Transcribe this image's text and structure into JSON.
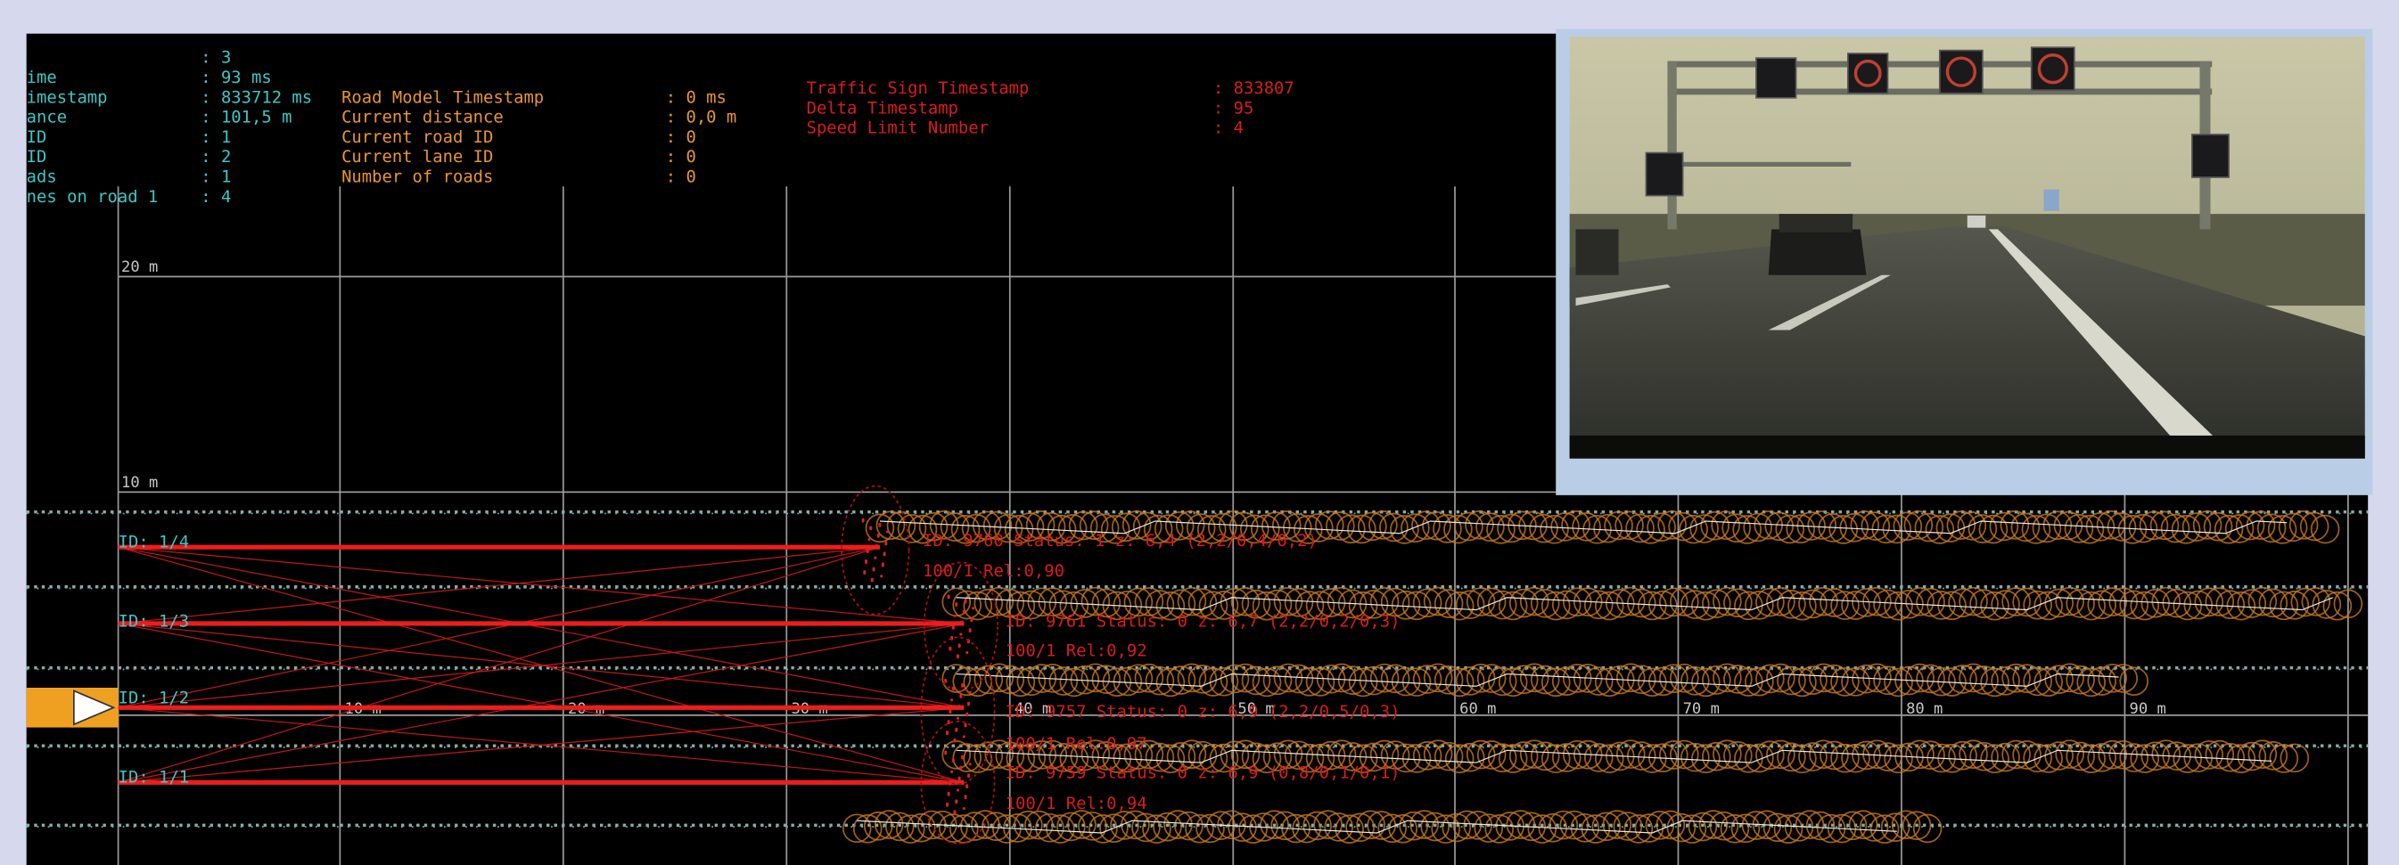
{
  "info_panel": {
    "rows": [
      {
        "value": ": 3"
      },
      {
        "label": "ime",
        "value": ": 93 ms"
      },
      {
        "label": "imestamp",
        "value": ": 833712 ms"
      },
      {
        "label": "ance",
        "value": ": 101,5 m"
      },
      {
        "label": "ID",
        "value": ": 1"
      },
      {
        "label": "ID",
        "value": ": 2"
      },
      {
        "label": "ads",
        "value": ": 1"
      },
      {
        "label": "nes on road 1",
        "value": ": 4"
      }
    ]
  },
  "road_model": {
    "rows": [
      {
        "label": "Road Model Timestamp",
        "value": ": 0 ms"
      },
      {
        "label": "Current distance",
        "value": ": 0,0 m"
      },
      {
        "label": "Current road ID",
        "value": ": 0"
      },
      {
        "label": "Current lane ID",
        "value": ": 0"
      },
      {
        "label": "Number of roads",
        "value": ": 0"
      }
    ]
  },
  "traffic_sign": {
    "rows": [
      {
        "label": "Traffic Sign Timestamp",
        "value": ": 833807"
      },
      {
        "label": "Delta Timestamp",
        "value": ": 95"
      },
      {
        "label": "Speed Limit Number",
        "value": ": 4"
      }
    ]
  },
  "grid": {
    "y_labels": [
      "20 m",
      "10 m"
    ],
    "x_labels": [
      "10 m",
      "20 m",
      "30 m",
      "40 m",
      "50 m",
      "60 m",
      "70 m",
      "80 m",
      "90 m"
    ]
  },
  "lanes": [
    "ID: 1/4",
    "ID: 1/3",
    "ID: 1/2",
    "ID: 1/1"
  ],
  "objects": [
    {
      "line1": "ID: 9760 Status: 1 z: 6,4 (2,2/0,4/0,2)",
      "line2": "100/1 Rel:0,90"
    },
    {
      "line1": "ID: 9761 Status: 0 z: 6,7 (2,2/0,2/0,3)",
      "line2": "100/1 Rel:0,92"
    },
    {
      "line1": "ID: 9757 Status: 0 z: 6,9 (2,2/0,5/0,3)",
      "line2": "100/1 Rel:0,97"
    },
    {
      "line1": "ID: 9759 Status: 0 z: 6,9 (0,8/0,1/0,1)",
      "line2": "100/1 Rel:0,94"
    }
  ]
}
